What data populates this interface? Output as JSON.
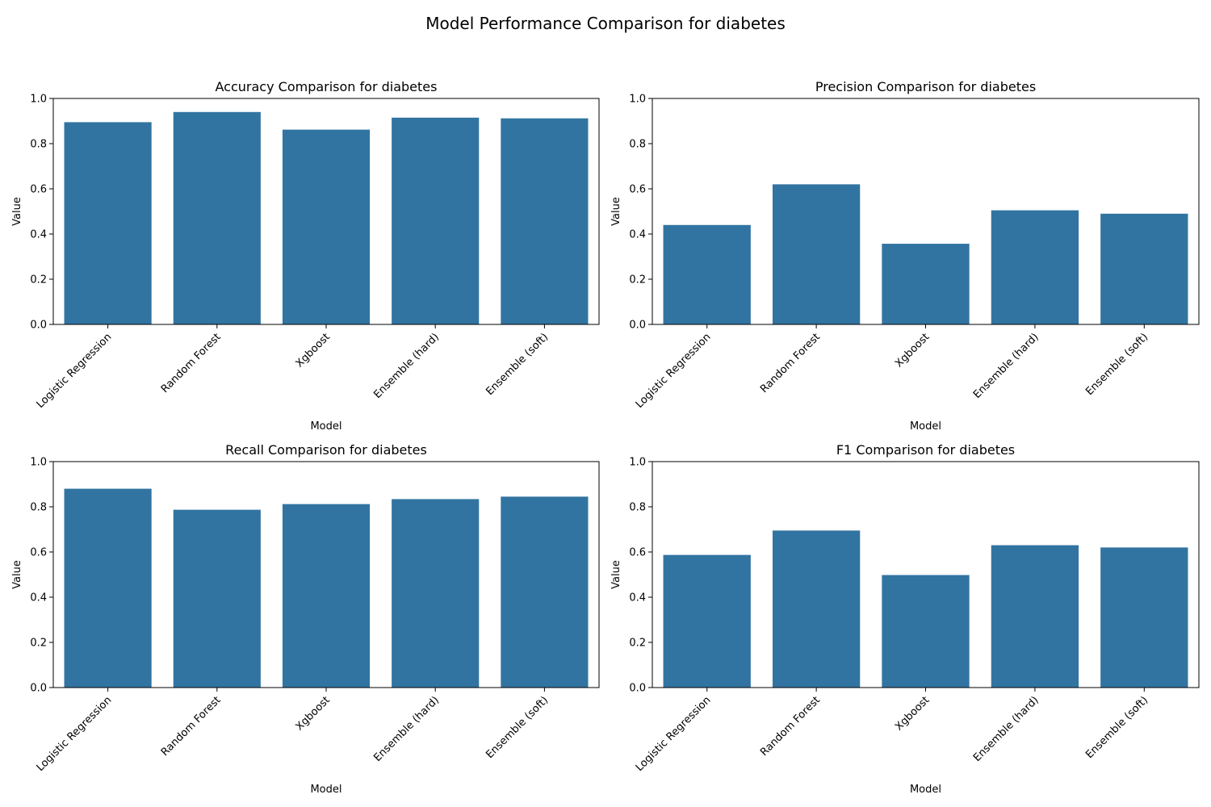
{
  "suptitle": "Model Performance Comparison for diabetes",
  "colors": {
    "bar": "#3274a1",
    "axis": "#000000",
    "background": "#ffffff"
  },
  "chart_data": [
    {
      "type": "bar",
      "title": "Accuracy Comparison for diabetes",
      "xlabel": "Model",
      "ylabel": "Value",
      "ylim": [
        0,
        1
      ],
      "yticks": [
        "0.0",
        "0.2",
        "0.4",
        "0.6",
        "0.8",
        "1.0"
      ],
      "categories": [
        "Logistic Regression",
        "Random Forest",
        "Xgboost",
        "Ensemble (hard)",
        "Ensemble (soft)"
      ],
      "values": [
        0.895,
        0.94,
        0.862,
        0.915,
        0.912
      ],
      "grid": false
    },
    {
      "type": "bar",
      "title": "Precision Comparison for diabetes",
      "xlabel": "Model",
      "ylabel": "Value",
      "ylim": [
        0,
        1
      ],
      "yticks": [
        "0.0",
        "0.2",
        "0.4",
        "0.6",
        "0.8",
        "1.0"
      ],
      "categories": [
        "Logistic Regression",
        "Random Forest",
        "Xgboost",
        "Ensemble (hard)",
        "Ensemble (soft)"
      ],
      "values": [
        0.44,
        0.62,
        0.357,
        0.505,
        0.49
      ],
      "grid": false
    },
    {
      "type": "bar",
      "title": "Recall Comparison for diabetes",
      "xlabel": "Model",
      "ylabel": "Value",
      "ylim": [
        0,
        1
      ],
      "yticks": [
        "0.0",
        "0.2",
        "0.4",
        "0.6",
        "0.8",
        "1.0"
      ],
      "categories": [
        "Logistic Regression",
        "Random Forest",
        "Xgboost",
        "Ensemble (hard)",
        "Ensemble (soft)"
      ],
      "values": [
        0.88,
        0.787,
        0.812,
        0.834,
        0.845
      ],
      "grid": false
    },
    {
      "type": "bar",
      "title": "F1 Comparison for diabetes",
      "xlabel": "Model",
      "ylabel": "Value",
      "ylim": [
        0,
        1
      ],
      "yticks": [
        "0.0",
        "0.2",
        "0.4",
        "0.6",
        "0.8",
        "1.0"
      ],
      "categories": [
        "Logistic Regression",
        "Random Forest",
        "Xgboost",
        "Ensemble (hard)",
        "Ensemble (soft)"
      ],
      "values": [
        0.587,
        0.695,
        0.498,
        0.63,
        0.62
      ],
      "grid": false
    }
  ]
}
